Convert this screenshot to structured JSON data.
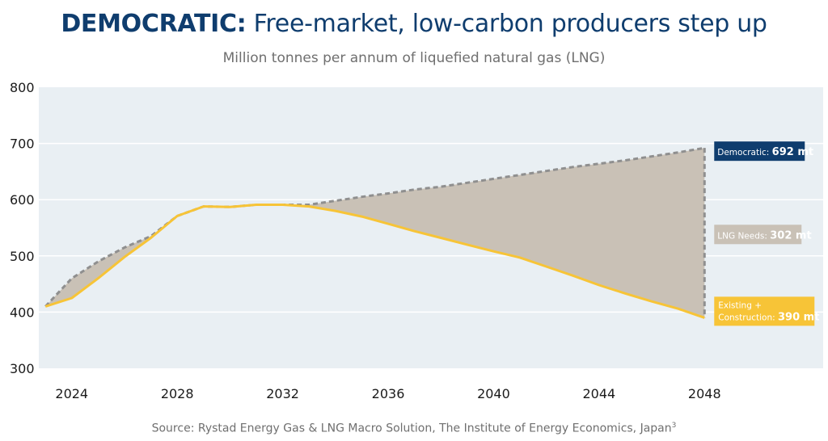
{
  "header": {
    "title_lead": "DEMOCRATIC:",
    "title_rest": " Free-market, low-carbon producers step up",
    "subtitle": "Million tonnes per annum of liquefied natural gas (LNG)"
  },
  "footer": {
    "source": "Source: Rystad Energy Gas & LNG Macro Solution, The Institute of Energy Economics, Japan",
    "source_sup": "3"
  },
  "colors": {
    "plot_bg": "#e9eff3",
    "supply_line": "#f7c437",
    "demand_line": "#8f8f8f",
    "gap_fill": "#c9c1b6",
    "democratic_label": "#0f3d6e",
    "needs_label": "#c9c1b6",
    "existing_label": "#f7c437"
  },
  "chart_data": {
    "type": "area",
    "ylim": [
      300,
      800
    ],
    "yticks": [
      300,
      400,
      500,
      600,
      700,
      800
    ],
    "xlim": [
      2022.75,
      2052.5
    ],
    "xticks": [
      2024,
      2028,
      2032,
      2036,
      2040,
      2044,
      2048
    ],
    "grid": "horizontal",
    "series": [
      {
        "key": "supply",
        "style": "solid",
        "x": [
          2023,
          2024,
          2025,
          2026,
          2027,
          2028,
          2029,
          2030,
          2031,
          2032,
          2033,
          2034,
          2035,
          2036,
          2037,
          2038,
          2039,
          2040,
          2041,
          2042,
          2043,
          2044,
          2045,
          2046,
          2047,
          2048
        ],
        "values": [
          410,
          425,
          460,
          498,
          532,
          571,
          588,
          587,
          591,
          591,
          588,
          580,
          570,
          557,
          544,
          532,
          520,
          508,
          497,
          481,
          465,
          448,
          433,
          419,
          406,
          390
        ]
      },
      {
        "key": "demand",
        "style": "dashed",
        "x": [
          2023,
          2024,
          2025,
          2026,
          2027,
          2028,
          2029,
          2030,
          2031,
          2032,
          2033,
          2034,
          2035,
          2036,
          2037,
          2038,
          2039,
          2040,
          2041,
          2042,
          2043,
          2044,
          2045,
          2046,
          2047,
          2048
        ],
        "values": [
          410,
          460,
          490,
          515,
          535,
          571,
          588,
          587,
          591,
          591,
          591,
          598,
          605,
          611,
          618,
          623,
          630,
          637,
          644,
          651,
          658,
          664,
          670,
          677,
          684,
          692
        ]
      }
    ],
    "annotations": [
      {
        "key": "democratic",
        "text": "Democratic: ",
        "value": "692 mt"
      },
      {
        "key": "needs",
        "text": "LNG Needs: ",
        "value": "302 mt"
      },
      {
        "key": "existing",
        "text_line1": "Existing +",
        "text_line2": "Construction: ",
        "value": "390 mt"
      }
    ]
  }
}
